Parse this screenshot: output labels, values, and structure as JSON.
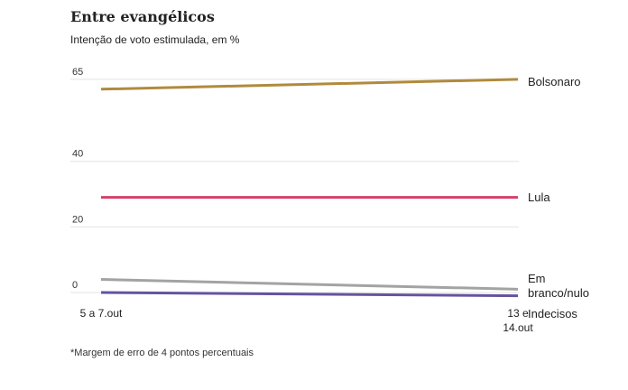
{
  "chart_data": {
    "type": "line",
    "title": "Entre evangélicos",
    "subtitle": "Intenção de voto estimulada, em %",
    "x": [
      "5 a 7.out",
      "13 e 14.out"
    ],
    "yticks": [
      0,
      20,
      40,
      65
    ],
    "ylim": [
      0,
      68
    ],
    "grid": true,
    "legend": "direct labels at line ends",
    "series": [
      {
        "name": "Bolsonaro",
        "values": [
          62,
          65
        ],
        "color": "#b08a3e"
      },
      {
        "name": "Lula",
        "values": [
          29,
          29
        ],
        "color": "#d6406b"
      },
      {
        "name": "Em branco/nulo",
        "values": [
          4,
          1
        ],
        "color": "#a3a3a3"
      },
      {
        "name": "Indecisos",
        "values": [
          0,
          -1
        ],
        "color": "#6553a0"
      }
    ]
  },
  "footnote": "*Margem de erro de 4 pontos percentuais"
}
